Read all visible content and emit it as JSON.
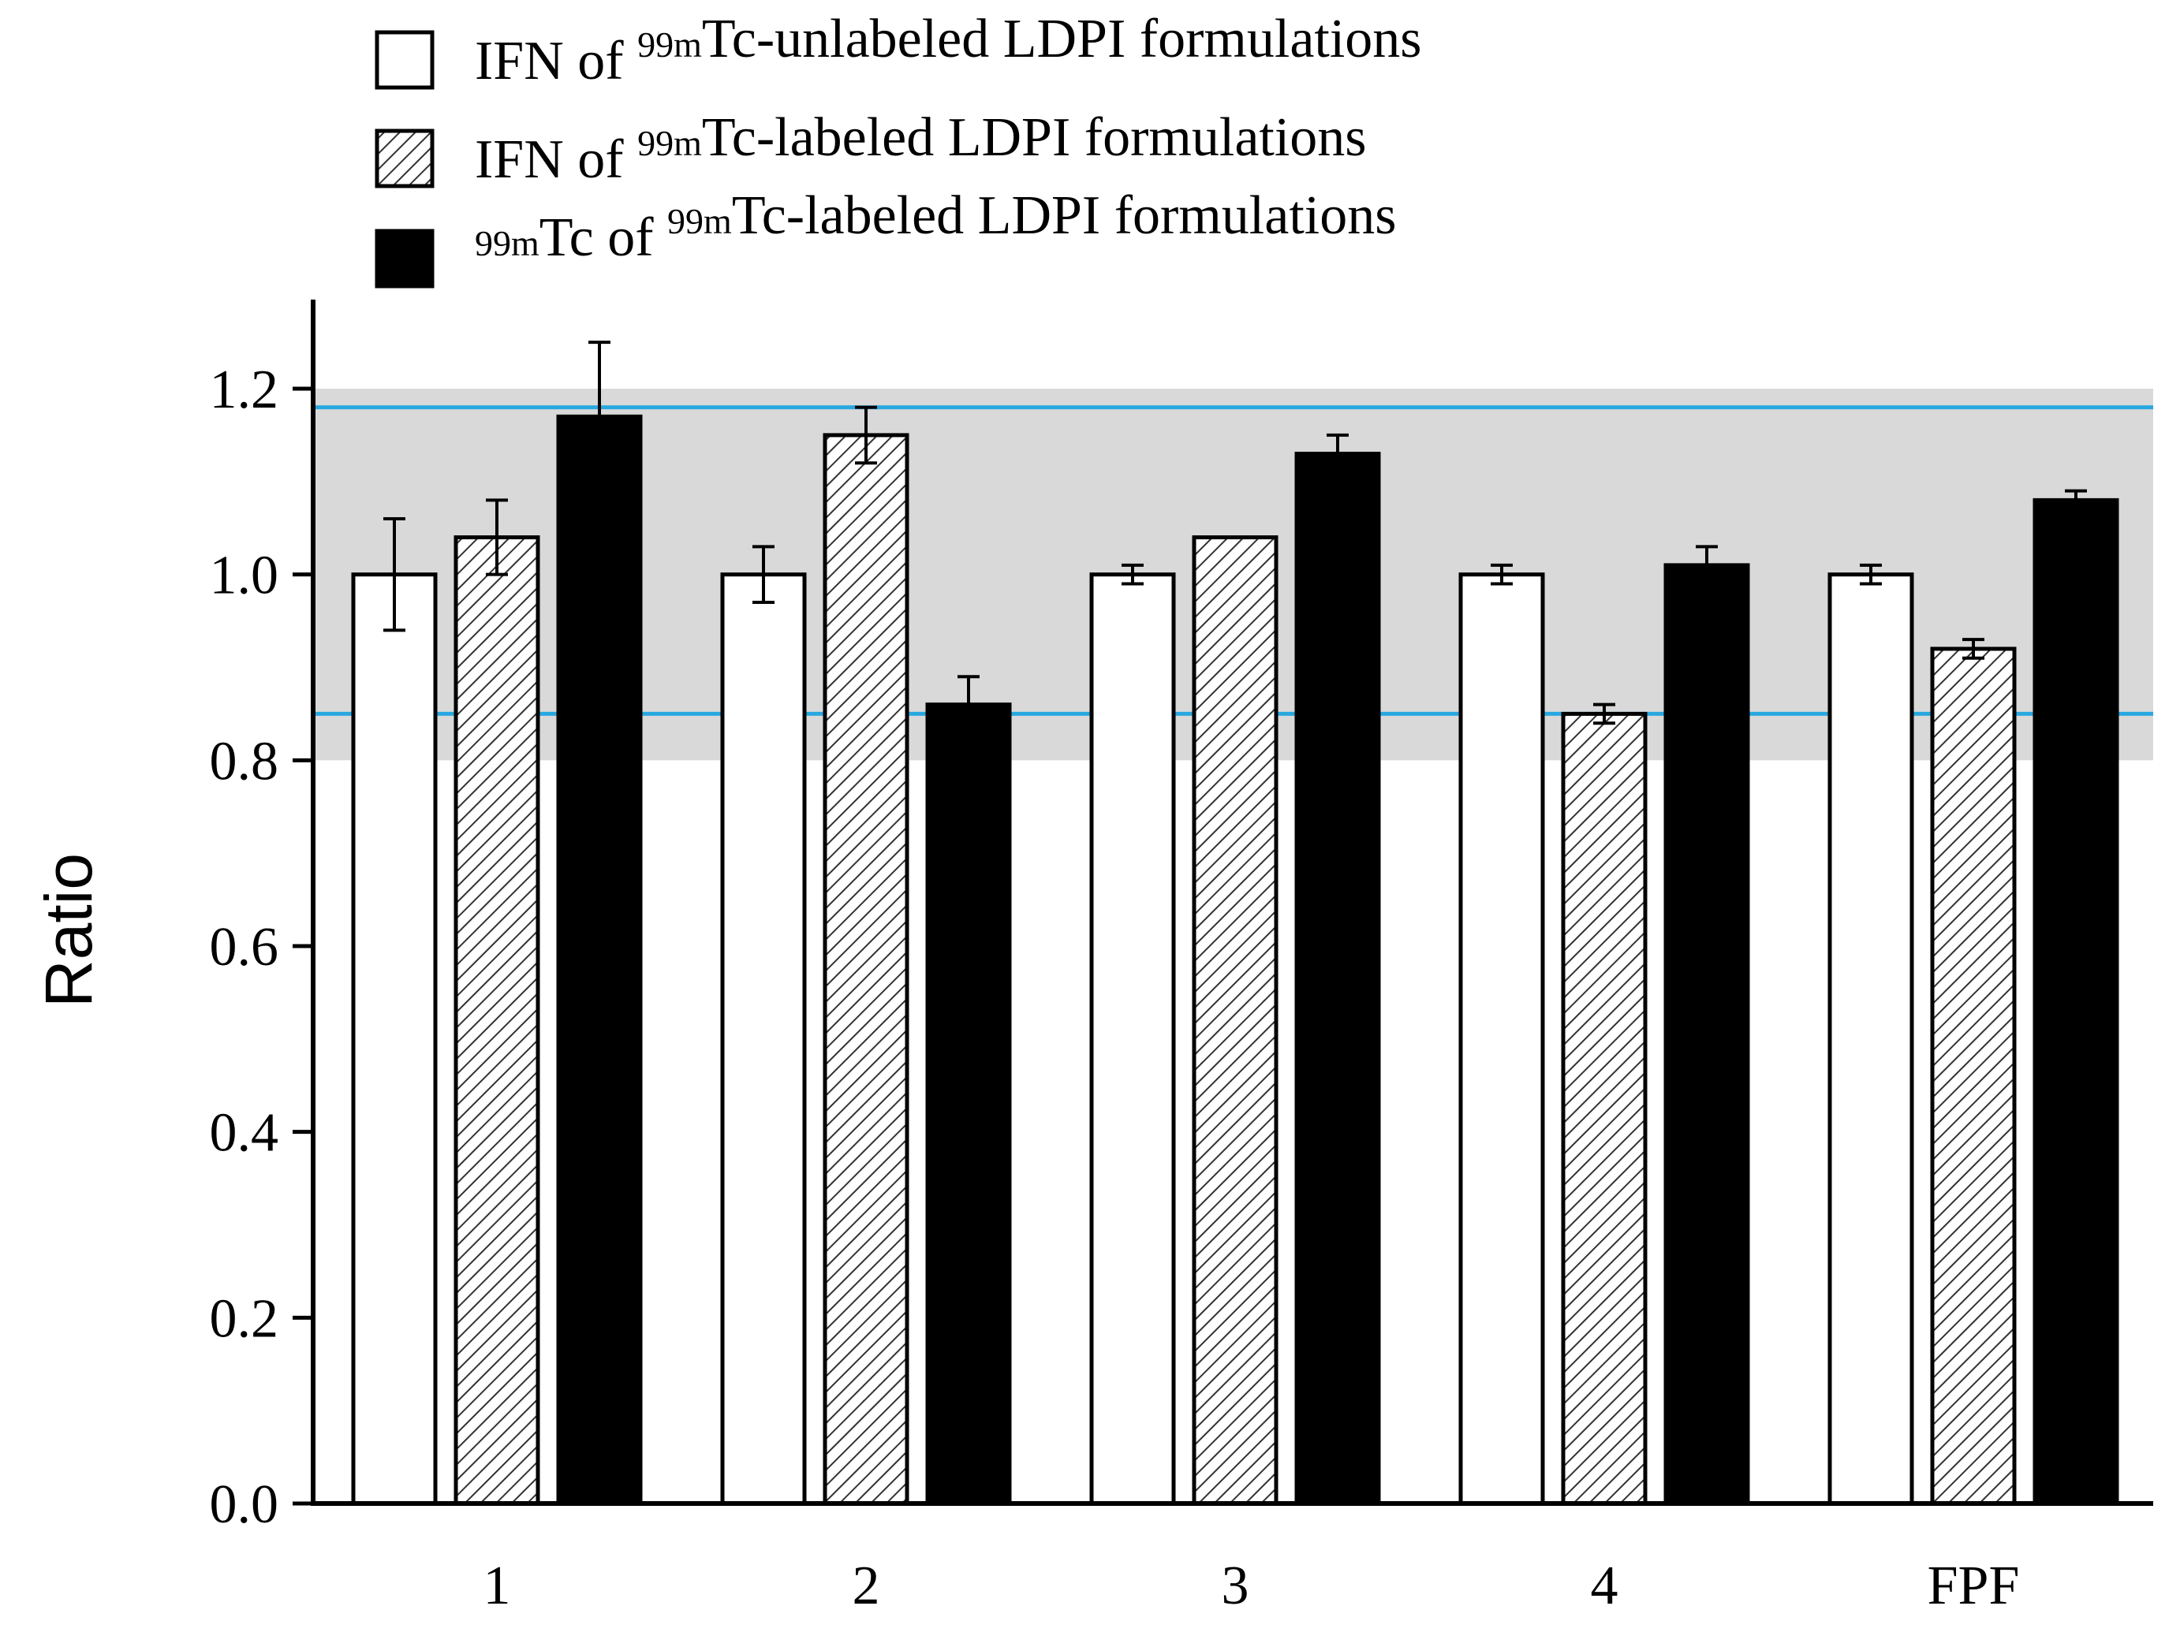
{
  "chart_data": {
    "type": "bar",
    "title": "",
    "xlabel": "",
    "ylabel": "Ratio",
    "ylim": [
      0,
      1.3
    ],
    "yticks": [
      "0.0",
      "0.2",
      "0.4",
      "0.6",
      "0.8",
      "1.0",
      "1.2"
    ],
    "ytick_values": [
      0,
      0.2,
      0.4,
      0.6,
      0.8,
      1.0,
      1.2
    ],
    "categories": [
      "1",
      "2",
      "3",
      "4",
      "FPF"
    ],
    "grid": false,
    "legend_position": "top",
    "acceptance_band": {
      "from": 0.8,
      "to": 1.2,
      "color": "#d9d9d9"
    },
    "reference_lines": [
      {
        "value": 1.18,
        "color": "#29a8e0"
      },
      {
        "value": 0.85,
        "color": "#29a8e0"
      }
    ],
    "series": [
      {
        "name": "IFN of 99mTc-unlabeled LDPI formulations",
        "legend": {
          "pre": "IFN of ",
          "sup1": "99m",
          "mid": "Tc-unlabeled LDPI formulations"
        },
        "style": "white",
        "values": [
          1.0,
          1.0,
          1.0,
          1.0,
          1.0
        ],
        "errors": [
          0.06,
          0.03,
          0.01,
          0.01,
          0.01
        ]
      },
      {
        "name": "IFN of 99mTc-labeled LDPI formulations",
        "legend": {
          "pre": "IFN of ",
          "sup1": "99m",
          "mid": "Tc-labeled LDPI formulations"
        },
        "style": "hatched",
        "values": [
          1.04,
          1.15,
          1.04,
          0.85,
          0.92
        ],
        "errors": [
          0.04,
          0.03,
          0.0,
          0.01,
          0.01
        ]
      },
      {
        "name": "99mTc of 99mTc-labeled LDPI formulations",
        "legend": {
          "pre": "",
          "sup0": "99m",
          "pre2": "Tc of ",
          "sup1": "99m",
          "mid": "Tc-labeled LDPI formulations"
        },
        "style": "black",
        "values": [
          1.17,
          0.86,
          1.13,
          1.01,
          1.08
        ],
        "errors": [
          0.08,
          0.03,
          0.02,
          0.02,
          0.01
        ]
      }
    ]
  }
}
